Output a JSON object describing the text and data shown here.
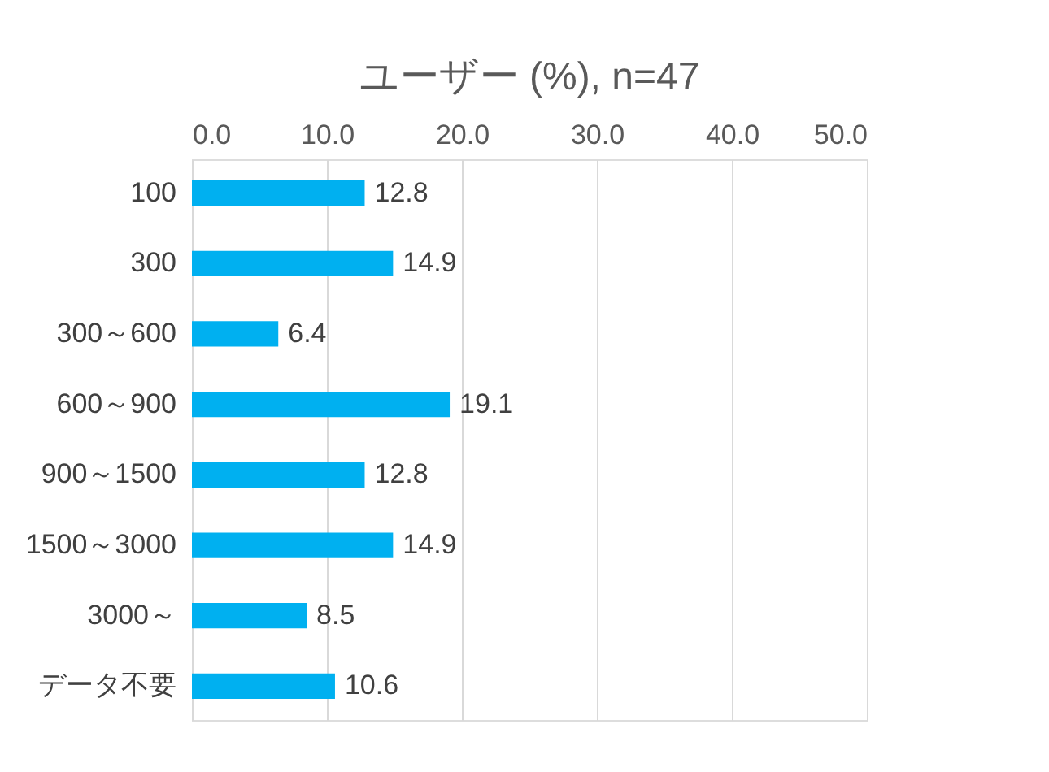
{
  "chart_data": {
    "type": "bar",
    "orientation": "horizontal",
    "title": "ユーザー (%), n=47",
    "categories": [
      "100",
      "300",
      "300～600",
      "600～900",
      "900～1500",
      "1500～3000",
      "3000～",
      "データ不要"
    ],
    "values": [
      12.8,
      14.9,
      6.4,
      19.1,
      12.8,
      14.9,
      8.5,
      10.6
    ],
    "color": "#00b0f0",
    "xlim": [
      0,
      50
    ],
    "xticks": [
      {
        "value": 0,
        "label": "0.0"
      },
      {
        "value": 10,
        "label": "10.0"
      },
      {
        "value": 20,
        "label": "20.0"
      },
      {
        "value": 30,
        "label": "30.0"
      },
      {
        "value": 40,
        "label": "40.0"
      },
      {
        "value": 50,
        "label": "50.0"
      }
    ],
    "grid": "x",
    "data_labels": true
  }
}
